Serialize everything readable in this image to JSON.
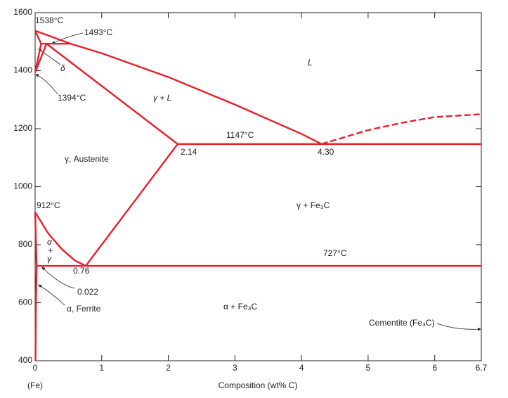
{
  "chart_data": {
    "type": "line",
    "x_label": "Composition (wt% C)",
    "x_origin_label": "(Fe)",
    "color": "#e8202a",
    "xlim": [
      0,
      6.7
    ],
    "xticks": [
      0,
      1,
      2,
      3,
      4,
      5,
      6,
      6.7
    ],
    "ylim": [
      400,
      1600
    ],
    "yticks": [
      400,
      600,
      800,
      1000,
      1200,
      1400,
      1600
    ],
    "grid": false,
    "series": [
      {
        "x": [
          0,
          0.53
        ],
        "values": [
          1538,
          1493
        ]
      },
      {
        "x": [
          0,
          0.09
        ],
        "values": [
          1538,
          1493
        ]
      },
      {
        "x": [
          0.09,
          0.53
        ],
        "values": [
          1493,
          1493
        ]
      },
      {
        "x": [
          0,
          0.09
        ],
        "values": [
          1394,
          1493
        ]
      },
      {
        "x": [
          0,
          0.17
        ],
        "values": [
          1394,
          1493
        ]
      },
      {
        "x": [
          0.53,
          1,
          2,
          3,
          4,
          4.3
        ],
        "values": [
          1493,
          1460,
          1378,
          1283,
          1182,
          1147
        ]
      },
      {
        "x": [
          0.17,
          2.14
        ],
        "values": [
          1493,
          1147
        ]
      },
      {
        "x": [
          2.14,
          6.7
        ],
        "values": [
          1147,
          1147
        ]
      },
      {
        "x": [
          4.3,
          5,
          5.5,
          6,
          6.7
        ],
        "values": [
          1147,
          1195,
          1220,
          1240,
          1250
        ],
        "dashed": true
      },
      {
        "x": [
          2.14,
          0.76
        ],
        "values": [
          1147,
          727
        ]
      },
      {
        "x": [
          0,
          0.2,
          0.4,
          0.6,
          0.76
        ],
        "values": [
          912,
          838,
          785,
          745,
          727
        ]
      },
      {
        "x": [
          0,
          0.022
        ],
        "values": [
          912,
          727
        ]
      },
      {
        "x": [
          0.022,
          6.7
        ],
        "values": [
          727,
          727
        ]
      },
      {
        "x": [
          0.022,
          0.012,
          0.005
        ],
        "values": [
          727,
          600,
          400
        ]
      }
    ],
    "annotations": [
      "1538°C",
      "1493°C",
      "δ",
      "1394°C",
      "L",
      "γ + L",
      "1147°C",
      "2.14",
      "4.30",
      "γ, Austenite",
      "912°C",
      "γ + Fe₃C",
      "727°C",
      "0.76",
      "α",
      "+",
      "γ",
      "0.022",
      "α, Ferrite",
      "α + Fe₃C",
      "Cementite (Fe₃C)"
    ]
  }
}
